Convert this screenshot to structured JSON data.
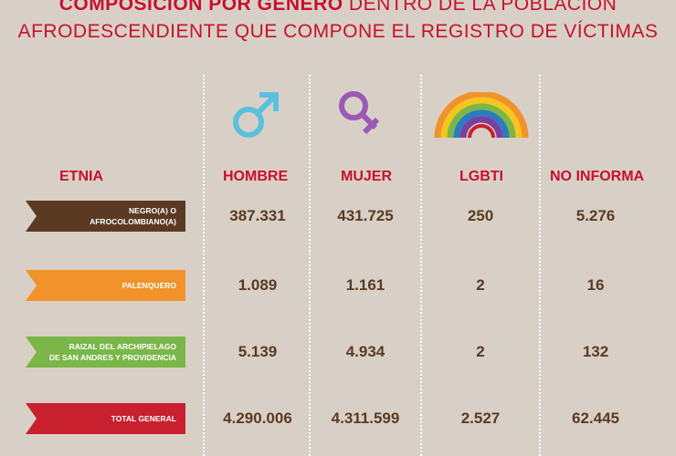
{
  "title": {
    "line1_bold": "COMPOSICIÓN POR GÉNERO",
    "line1_rest": " DENTRO DE LA POBLACIÓN",
    "line2": "AFRODESCENDIENTE QUE COMPONE EL REGISTRO DE VÍCTIMAS"
  },
  "icons": {
    "male": "male-symbol-icon",
    "female": "female-symbol-icon",
    "lgbti": "rainbow-icon"
  },
  "colors": {
    "title": "#c8102e",
    "header": "#c8102e",
    "values": "#5a3a22",
    "background": "#d8d0c6",
    "male": "#5bc0de",
    "female": "#9b59b6",
    "row_negro": "#5a3a22",
    "row_palenquero": "#f2922a",
    "row_raizal": "#7ab648",
    "row_total": "#c8202e"
  },
  "chart_data": {
    "type": "table",
    "columns": [
      "ETNIA",
      "HOMBRE",
      "MUJER",
      "LGBTI",
      "NO INFORMA"
    ],
    "rows": [
      {
        "label": "NEGRO(A) O AFROCOLOMBIANO(A)",
        "label_lines": [
          "NEGRO(A) O",
          "AFROCOLOMBIANO(A)"
        ],
        "color": "#5a3a22",
        "values": [
          "387.331",
          "431.725",
          "250",
          "5.276"
        ]
      },
      {
        "label": "PALENQUERO",
        "label_lines": [
          "PALENQUERO",
          ""
        ],
        "color": "#f2922a",
        "values": [
          "1.089",
          "1.161",
          "2",
          "16"
        ]
      },
      {
        "label": "RAIZAL DEL ARCHIPIELAGO DE SAN ANDRES Y PROVIDENCIA",
        "label_lines": [
          "RAIZAL DEL ARCHIPIELAGO",
          "DE SAN ANDRES Y PROVIDENCIA"
        ],
        "color": "#7ab648",
        "values": [
          "5.139",
          "4.934",
          "2",
          "132"
        ]
      },
      {
        "label": "TOTAL GENERAL",
        "label_lines": [
          "TOTAL GENERAL",
          ""
        ],
        "color": "#c8202e",
        "values": [
          "4.290.006",
          "4.311.599",
          "2.527",
          "62.445"
        ]
      }
    ]
  }
}
